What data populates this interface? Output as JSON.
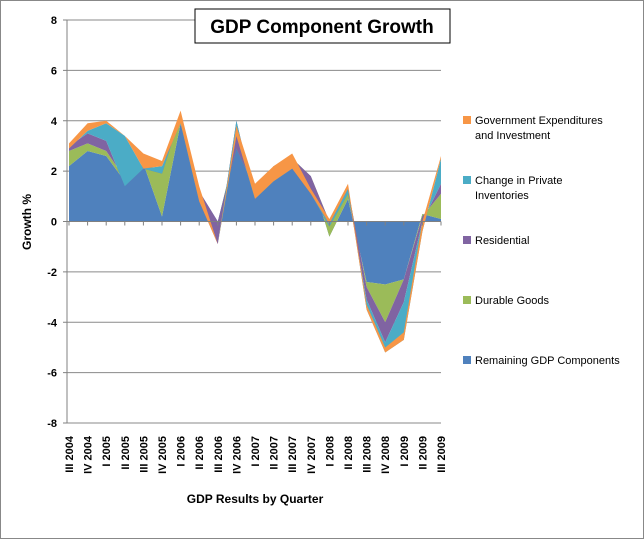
{
  "chart_data": {
    "type": "area",
    "stacked": true,
    "title": "GDP Component Growth",
    "xlabel": "GDP Results by Quarter",
    "ylabel": "Growth %",
    "ylim": [
      -8,
      8
    ],
    "yticks": [
      -8,
      -6,
      -4,
      -2,
      0,
      2,
      4,
      6,
      8
    ],
    "grid": true,
    "legend_position": "right",
    "categories": [
      "III 2004",
      "IV 2004",
      "I 2005",
      "II 2005",
      "III 2005",
      "IV 2005",
      "I 2006",
      "II 2006",
      "III 2006",
      "IV 2006",
      "I 2007",
      "II 2007",
      "III 2007",
      "IV 2007",
      "I 2008",
      "II 2008",
      "III 2008",
      "IV 2008",
      "I 2009",
      "II 2009",
      "III 2009"
    ],
    "x_tick_labels": [
      "III 2004",
      "IV 2004",
      "I 2005",
      "II 2005",
      "III 2005",
      "IV 2005",
      "I 2006",
      "II 2006",
      "III 2006",
      "IV 2006",
      "I 2007",
      "II 2007",
      "III 2007",
      "IV 2007",
      "I 2008",
      "II 2008",
      "III 2008",
      "IV 2008",
      "I 2009",
      "II 2009",
      "III 2009"
    ],
    "series": [
      {
        "name": "Remaining GDP Components",
        "color": "#4F81BD",
        "values": [
          2.2,
          2.8,
          2.6,
          1.6,
          2.3,
          0.2,
          3.9,
          1.2,
          0.0,
          3.0,
          1.2,
          2.0,
          2.4,
          1.8,
          -0.6,
          0.9,
          -2.4,
          -2.5,
          -2.3,
          0.3,
          0.1
        ]
      },
      {
        "name": "Durable Goods",
        "color": "#9BBB59",
        "values": [
          0.6,
          0.3,
          0.2,
          0.1,
          -0.1,
          1.9,
          0.4,
          0.0,
          0.0,
          -0.1,
          0.1,
          0.2,
          0.1,
          0.0,
          0.6,
          0.4,
          -0.2,
          -1.5,
          0.0,
          -0.1,
          1.0
        ]
      },
      {
        "name": "Residential",
        "color": "#8064A2",
        "values": [
          0.2,
          0.4,
          0.4,
          -0.3,
          -0.1,
          -0.2,
          -0.1,
          -0.4,
          -0.9,
          1.1,
          -0.4,
          -0.1,
          -0.4,
          -0.7,
          -0.2,
          -0.2,
          -0.5,
          -0.8,
          -0.9,
          -0.2,
          0.4
        ]
      },
      {
        "name": "Change in Private Inventories",
        "color": "#4BACC6",
        "values": [
          -0.1,
          0.1,
          0.7,
          2.0,
          0.0,
          0.3,
          -0.3,
          0.0,
          0.0,
          -0.6,
          0.0,
          -0.5,
          0.0,
          0.0,
          0.1,
          0.2,
          -0.4,
          -0.4,
          -1.5,
          -0.4,
          1.0
        ]
      },
      {
        "name": "Government Expenditures and Investment",
        "color": "#F79646",
        "values": [
          0.2,
          0.3,
          0.1,
          0.0,
          0.6,
          0.2,
          0.5,
          0.6,
          0.0,
          0.4,
          0.6,
          0.6,
          0.6,
          0.2,
          0.2,
          0.2,
          0.2,
          0.2,
          0.3,
          0.4,
          0.1
        ]
      }
    ],
    "legend": [
      {
        "series_index": 4,
        "lines": [
          "Government Expenditures",
          "and Investment"
        ]
      },
      {
        "series_index": 3,
        "lines": [
          "Change in  Private",
          "Inventories"
        ]
      },
      {
        "series_index": 2,
        "lines": [
          "Residential"
        ]
      },
      {
        "series_index": 1,
        "lines": [
          "Durable Goods"
        ]
      },
      {
        "series_index": 0,
        "lines": [
          "Remaining GDP Components"
        ]
      }
    ]
  }
}
